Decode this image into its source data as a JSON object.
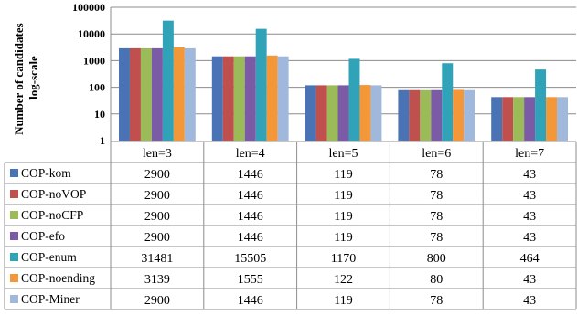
{
  "chart_data": {
    "type": "bar",
    "scale": "log",
    "ylabel_line1": "Number of candidates",
    "ylabel_line2": "log-scale",
    "ylim": [
      1,
      100000
    ],
    "y_ticks": [
      "100000",
      "10000",
      "1000",
      "100",
      "10",
      "1"
    ],
    "grid": true,
    "legend_placement": "data table below chart",
    "categories": [
      "len=3",
      "len=4",
      "len=5",
      "len=6",
      "len=7"
    ],
    "series": [
      {
        "name": "COP-kom",
        "color": "#4a73b5",
        "values": [
          2900,
          1446,
          119,
          78,
          43
        ]
      },
      {
        "name": "COP-noVOP",
        "color": "#c0504d",
        "values": [
          2900,
          1446,
          119,
          78,
          43
        ]
      },
      {
        "name": "COP-noCFP",
        "color": "#9bbb59",
        "values": [
          2900,
          1446,
          119,
          78,
          43
        ]
      },
      {
        "name": "COP-efo",
        "color": "#7b5aa6",
        "values": [
          2900,
          1446,
          119,
          78,
          43
        ]
      },
      {
        "name": "COP-enum",
        "color": "#31a3b8",
        "values": [
          31481,
          15505,
          1170,
          800,
          464
        ]
      },
      {
        "name": "COP-noending",
        "color": "#f39738",
        "values": [
          3139,
          1555,
          122,
          80,
          43
        ]
      },
      {
        "name": "COP-Miner",
        "color": "#a1b8dd",
        "values": [
          2900,
          1446,
          119,
          78,
          43
        ]
      }
    ]
  }
}
